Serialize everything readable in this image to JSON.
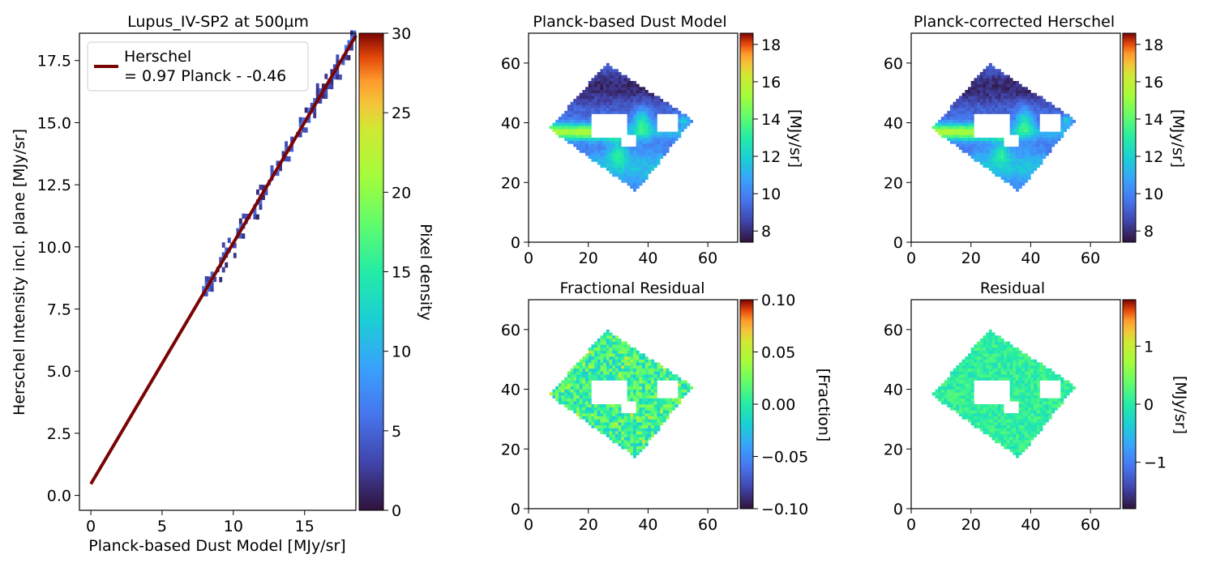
{
  "chart_data": [
    {
      "id": "scatter",
      "type": "heatmap",
      "title": "Lupus_IV-SP2 at 500µm",
      "xlabel": "Planck-based Dust Model [MJy/sr]",
      "ylabel": "Herschel Intensity incl. plane [MJy/sr]",
      "xlim": [
        -0.8,
        18.6
      ],
      "ylim": [
        -0.6,
        18.6
      ],
      "xticks": [
        0,
        5,
        10,
        15
      ],
      "yticks": [
        0.0,
        2.5,
        5.0,
        7.5,
        10.0,
        12.5,
        15.0,
        17.5
      ],
      "x_tick_labels": [
        "0",
        "5",
        "10",
        "15"
      ],
      "y_tick_labels": [
        "0.0",
        "2.5",
        "5.0",
        "7.5",
        "10.0",
        "12.5",
        "15.0",
        "17.5"
      ],
      "fit_line": {
        "slope": 0.97,
        "intercept": 0.46,
        "x": [
          0,
          18.6
        ]
      },
      "legend": {
        "line1": "Herschel",
        "line2": "= 0.97 Planck - -0.46",
        "placement": "upper-left"
      },
      "data_range_x": [
        7.6,
        18.4
      ],
      "colorbar": {
        "label": "Pixel density",
        "range": [
          0,
          30
        ],
        "ticks": [
          0,
          5,
          10,
          15,
          20,
          25,
          30
        ],
        "tick_labels": [
          "0",
          "5",
          "10",
          "15",
          "20",
          "25",
          "30"
        ],
        "colormap": "turbo"
      }
    },
    {
      "id": "planck",
      "type": "heatmap",
      "title": "Planck-based Dust Model",
      "xlim": [
        0,
        70
      ],
      "ylim": [
        0,
        70
      ],
      "xticks": [
        0,
        20,
        40,
        60
      ],
      "yticks": [
        0,
        20,
        40,
        60
      ],
      "x_tick_labels": [
        "0",
        "20",
        "40",
        "60"
      ],
      "y_tick_labels": [
        "0",
        "20",
        "40",
        "60"
      ],
      "colorbar": {
        "label": "[MJy/sr]",
        "range": [
          7.4,
          18.6
        ],
        "ticks": [
          8,
          10,
          12,
          14,
          16,
          18
        ],
        "tick_labels": [
          "8",
          "10",
          "12",
          "14",
          "16",
          "18"
        ],
        "colormap": "turbo"
      }
    },
    {
      "id": "herschel",
      "type": "heatmap",
      "title": "Planck-corrected Herschel",
      "xlim": [
        0,
        70
      ],
      "ylim": [
        0,
        70
      ],
      "xticks": [
        0,
        20,
        40,
        60
      ],
      "yticks": [
        0,
        20,
        40,
        60
      ],
      "x_tick_labels": [
        "0",
        "20",
        "40",
        "60"
      ],
      "y_tick_labels": [
        "0",
        "20",
        "40",
        "60"
      ],
      "colorbar": {
        "label": "[MJy/sr]",
        "range": [
          7.4,
          18.6
        ],
        "ticks": [
          8,
          10,
          12,
          14,
          16,
          18
        ],
        "tick_labels": [
          "8",
          "10",
          "12",
          "14",
          "16",
          "18"
        ],
        "colormap": "turbo"
      }
    },
    {
      "id": "fracres",
      "type": "heatmap",
      "title": "Fractional Residual",
      "xlim": [
        0,
        70
      ],
      "ylim": [
        0,
        70
      ],
      "xticks": [
        0,
        20,
        40,
        60
      ],
      "yticks": [
        0,
        20,
        40,
        60
      ],
      "x_tick_labels": [
        "0",
        "20",
        "40",
        "60"
      ],
      "y_tick_labels": [
        "0",
        "20",
        "40",
        "60"
      ],
      "colorbar": {
        "label": "[Fraction]",
        "range": [
          -0.1,
          0.1
        ],
        "ticks": [
          -0.1,
          -0.05,
          0,
          0.05,
          0.1
        ],
        "tick_labels": [
          "−0.10",
          "−0.05",
          "0.00",
          "0.05",
          "0.10"
        ],
        "colormap": "turbo"
      }
    },
    {
      "id": "residual",
      "type": "heatmap",
      "title": "Residual",
      "xlim": [
        0,
        70
      ],
      "ylim": [
        0,
        70
      ],
      "xticks": [
        0,
        20,
        40,
        60
      ],
      "yticks": [
        0,
        20,
        40,
        60
      ],
      "x_tick_labels": [
        "0",
        "20",
        "40",
        "60"
      ],
      "y_tick_labels": [
        "0",
        "20",
        "40",
        "60"
      ],
      "colorbar": {
        "label": "[MJy/sr]",
        "range": [
          -1.8,
          1.8
        ],
        "ticks": [
          -1,
          0,
          1
        ],
        "tick_labels": [
          "−1",
          "0",
          "1"
        ],
        "colormap": "turbo"
      }
    }
  ],
  "colors": {
    "fit_line": "#7a0403",
    "axis": "#000000"
  },
  "map_region": {
    "corners": [
      [
        7,
        38
      ],
      [
        26,
        60
      ],
      [
        55,
        41
      ],
      [
        36,
        17
      ]
    ],
    "holes": [
      {
        "x": [
          21,
          33
        ],
        "y": [
          35,
          43
        ]
      },
      {
        "x": [
          43,
          50
        ],
        "y": [
          37,
          43
        ]
      },
      {
        "x": [
          31,
          36
        ],
        "y": [
          32,
          36
        ]
      }
    ]
  }
}
